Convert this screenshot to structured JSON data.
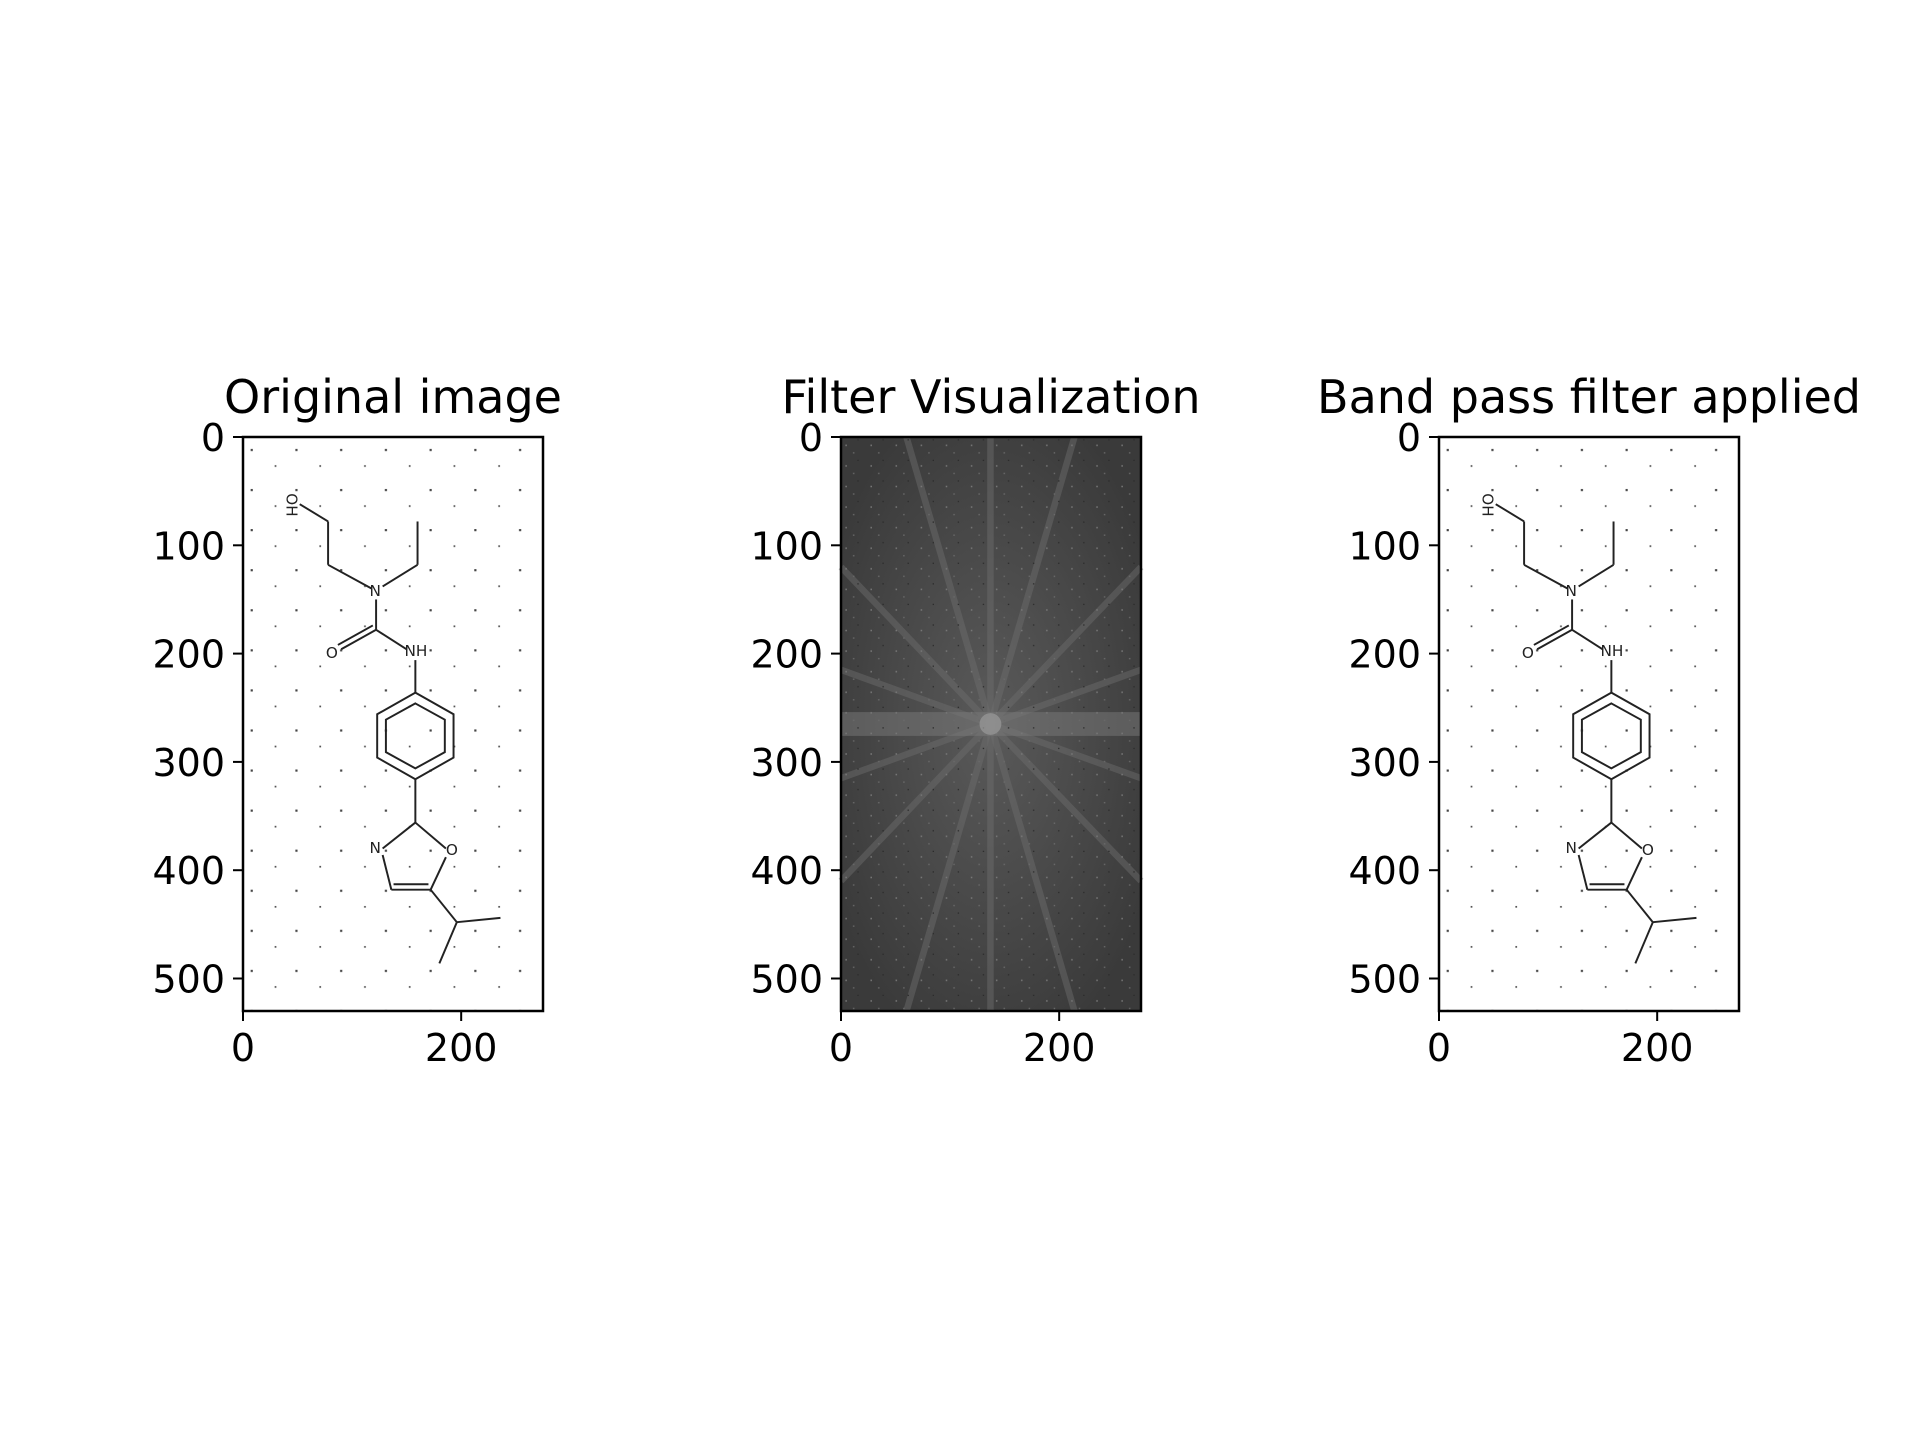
{
  "chart_data": [
    {
      "type": "image",
      "title": "Original image",
      "image": "molecule-drawing",
      "x_ticks": [
        0,
        200
      ],
      "y_ticks": [
        0,
        100,
        200,
        300,
        400,
        500
      ],
      "xlim": [
        0,
        275
      ],
      "ylim": [
        530,
        0
      ],
      "atom_labels": [
        "OH",
        "N",
        "O",
        "NH",
        "N",
        "O"
      ]
    },
    {
      "type": "image",
      "title": "Filter Visualization",
      "image": "fourier-spectrum",
      "x_ticks": [
        0,
        200
      ],
      "y_ticks": [
        0,
        100,
        200,
        300,
        400,
        500
      ],
      "xlim": [
        0,
        275
      ],
      "ylim": [
        530,
        0
      ]
    },
    {
      "type": "image",
      "title": "Band pass filter applied",
      "image": "molecule-drawing",
      "x_ticks": [
        0,
        200
      ],
      "y_ticks": [
        0,
        100,
        200,
        300,
        400,
        500
      ],
      "xlim": [
        0,
        275
      ],
      "ylim": [
        530,
        0
      ],
      "atom_labels": [
        "OH",
        "N",
        "O",
        "NH",
        "N",
        "O"
      ]
    }
  ]
}
